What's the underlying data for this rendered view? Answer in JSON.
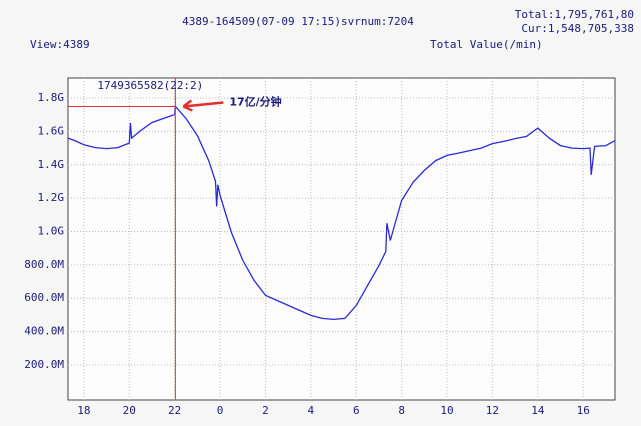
{
  "chart_data": {
    "type": "line",
    "header": "4389-164509(07-09 17:15)svrnum:7204",
    "total": "Total:1,795,761,80",
    "cur": "Cur:1,548,705,338",
    "view": "View:4389",
    "title": "Total Value(/min)",
    "annotation": "17亿/分钟",
    "marker": {
      "x": 22.03,
      "value": 1749365582,
      "label": "1749365582(22:2)",
      "color": "#e03030"
    },
    "x": [
      17.3,
      17.6,
      18,
      18.5,
      19,
      19.5,
      20,
      20.05,
      20.1,
      20.5,
      21,
      21.5,
      22,
      22.03,
      22.5,
      23,
      23.5,
      23.8,
      23.85,
      23.9,
      24,
      24.5,
      25,
      25.5,
      26,
      26.5,
      27,
      27.5,
      28,
      28.5,
      29,
      29.5,
      30,
      30.5,
      31,
      31.3,
      31.35,
      31.5,
      32,
      32.5,
      33,
      33.5,
      34,
      34.5,
      35,
      35.5,
      36,
      36.5,
      37,
      37.5,
      38,
      38.5,
      39,
      39.5,
      40,
      40.3,
      40.35,
      40.5,
      41,
      41.4
    ],
    "series": [
      {
        "name": "Total Value",
        "color": "#2a2ad6",
        "values": [
          1560000000,
          1545000000,
          1520000000,
          1503000000,
          1497000000,
          1503000000,
          1530000000,
          1650000000,
          1560000000,
          1605000000,
          1653000000,
          1677000000,
          1701000000,
          1749365582,
          1677000000,
          1575000000,
          1425000000,
          1300000000,
          1150000000,
          1280000000,
          1216000000,
          994000000,
          827000000,
          707000000,
          617000000,
          587000000,
          557000000,
          527000000,
          497000000,
          479000000,
          473000000,
          479000000,
          557000000,
          677000000,
          797000000,
          880000000,
          1050000000,
          946000000,
          1186000000,
          1294000000,
          1366000000,
          1425000000,
          1456000000,
          1470000000,
          1485000000,
          1500000000,
          1527000000,
          1540000000,
          1557000000,
          1570000000,
          1620000000,
          1560000000,
          1515000000,
          1500000000,
          1497000000,
          1500000000,
          1340000000,
          1510000000,
          1515000000,
          1545000000
        ]
      }
    ],
    "xlim": [
      17.3,
      41.4
    ],
    "ylim": [
      -10000000,
      1920000000
    ],
    "xticks": [
      18,
      20,
      22,
      {
        "value": 24,
        "label": "0"
      },
      {
        "value": 26,
        "label": "2"
      },
      {
        "value": 28,
        "label": "4"
      },
      {
        "value": 30,
        "label": "6"
      },
      {
        "value": 32,
        "label": "8"
      },
      {
        "value": 34,
        "label": "10"
      },
      {
        "value": 36,
        "label": "12"
      },
      {
        "value": 38,
        "label": "14"
      },
      {
        "value": 40,
        "label": "16"
      }
    ],
    "yticks": [
      {
        "value": 200000000,
        "label": "200.0M"
      },
      {
        "value": 400000000,
        "label": "400.0M"
      },
      {
        "value": 600000000,
        "label": "600.0M"
      },
      {
        "value": 800000000,
        "label": "800.0M"
      },
      {
        "value": 1000000000,
        "label": "1.0G"
      },
      {
        "value": 1200000000,
        "label": "1.2G"
      },
      {
        "value": 1400000000,
        "label": "1.4G"
      },
      {
        "value": 1600000000,
        "label": "1.6G"
      },
      {
        "value": 1800000000,
        "label": "1.8G"
      }
    ],
    "grid": true
  }
}
